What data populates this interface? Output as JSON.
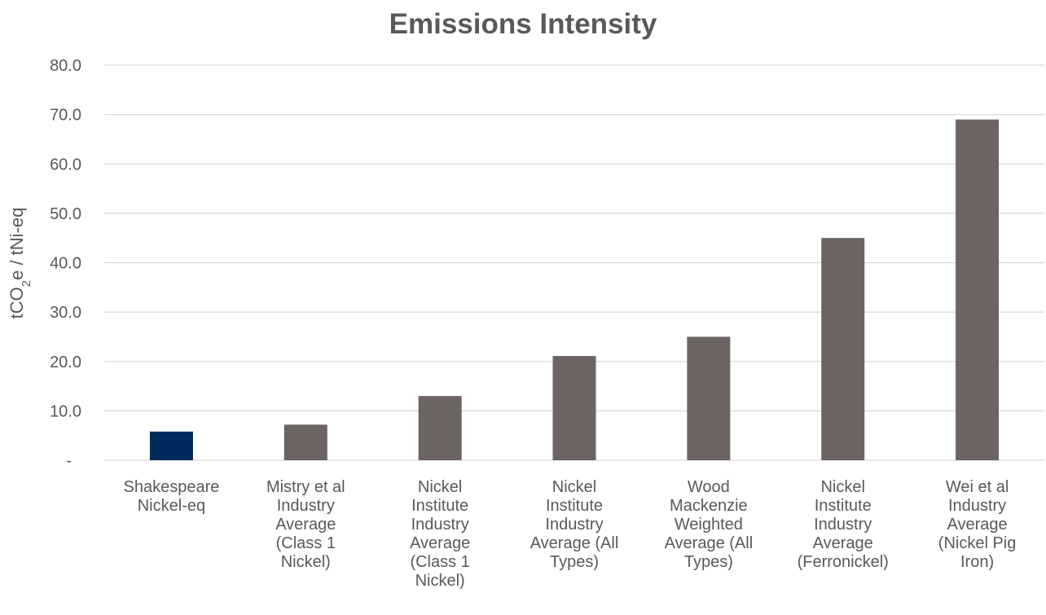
{
  "chart_data": {
    "type": "bar",
    "title": "Emissions Intensity",
    "xlabel": "",
    "ylabel": {
      "main": "tCO",
      "sub": "2",
      "rest": "e / tNi-eq"
    },
    "ylim": [
      0,
      80
    ],
    "yticks": [
      {
        "value": 0,
        "label": "-"
      },
      {
        "value": 10,
        "label": "10.0"
      },
      {
        "value": 20,
        "label": "20.0"
      },
      {
        "value": 30,
        "label": "30.0"
      },
      {
        "value": 40,
        "label": "40.0"
      },
      {
        "value": 50,
        "label": "50.0"
      },
      {
        "value": 60,
        "label": "60.0"
      },
      {
        "value": 70,
        "label": "70.0"
      },
      {
        "value": 80,
        "label": "80.0"
      }
    ],
    "grid": true,
    "legend": "none",
    "categories": [
      [
        "Shakespeare",
        "Nickel-eq"
      ],
      [
        "Mistry et al",
        "Industry",
        "Average",
        "(Class 1",
        "Nickel)"
      ],
      [
        "Nickel",
        "Institute",
        "Industry",
        "Average",
        "(Class 1",
        "Nickel)"
      ],
      [
        "Nickel",
        "Institute",
        "Industry",
        "Average (All",
        "Types)"
      ],
      [
        "Wood",
        "Mackenzie",
        "Weighted",
        "Average (All",
        "Types)"
      ],
      [
        "Nickel",
        "Institute",
        "Industry",
        "Average",
        "(Ferronickel)"
      ],
      [
        "Wei et al",
        "Industry",
        "Average",
        "(Nickel Pig",
        "Iron)"
      ]
    ],
    "values": [
      5.8,
      7.2,
      13.0,
      21.1,
      25.0,
      45.0,
      69.0
    ],
    "colors": [
      "#002b5c",
      "#6b6462",
      "#6b6462",
      "#6b6462",
      "#6b6462",
      "#6b6462",
      "#6b6462"
    ]
  }
}
